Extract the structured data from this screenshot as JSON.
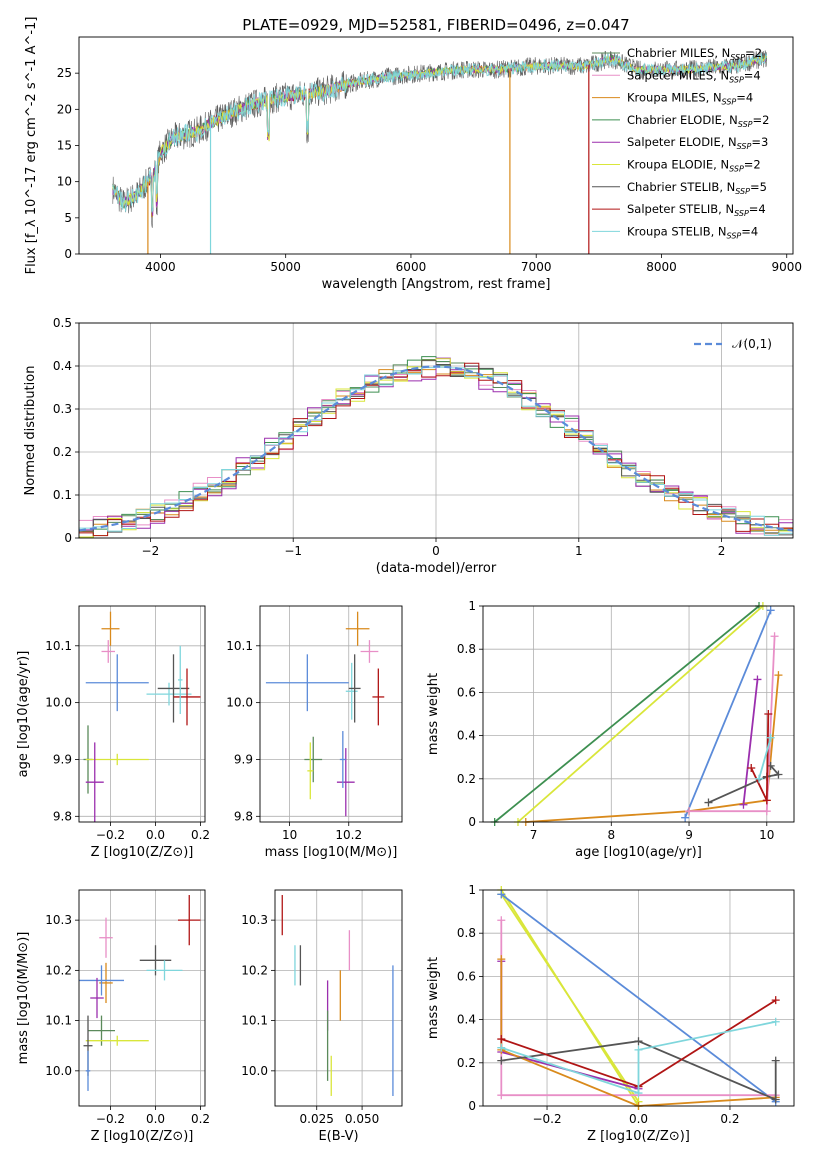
{
  "figure_title": "PLATE=0929, MJD=52581, FIBERID=0496, z=0.047",
  "colors": {
    "Chabrier MILES": "#5b8a5b",
    "Salpeter MILES": "#e88fc7",
    "Kroupa MILES": "#d98a1c",
    "Chabrier ELODIE": "#3d8f50",
    "Salpeter ELODIE": "#9b2fae",
    "Kroupa ELODIE": "#d9e63a",
    "Chabrier STELIB": "#555555",
    "Salpeter STELIB": "#b01515",
    "Kroupa STELIB": "#7fd6dc"
  },
  "chart_data": [
    {
      "id": "spectrum",
      "type": "line",
      "title": "PLATE=0929, MJD=52581, FIBERID=0496, z=0.047",
      "xlabel": "wavelength [Angstrom, rest frame]",
      "ylabel": "Flux [f_λ 10^-17 erg cm^-2 s^-1 A^-1]",
      "xlim": [
        3350,
        9050
      ],
      "ylim": [
        0,
        30
      ],
      "xticks": [
        4000,
        5000,
        6000,
        7000,
        8000,
        9000
      ],
      "yticks": [
        0,
        5,
        10,
        15,
        20,
        25
      ],
      "legend": "upper-right",
      "legend_entries": [
        {
          "label": "Chabrier MILES, N",
          "nssp": "=2",
          "color_key": "Chabrier MILES"
        },
        {
          "label": "Salpeter MILES, N",
          "nssp": "=4",
          "color_key": "Salpeter MILES"
        },
        {
          "label": "Kroupa MILES, N",
          "nssp": "=4",
          "color_key": "Kroupa MILES"
        },
        {
          "label": "Chabrier ELODIE, N",
          "nssp": "=2",
          "color_key": "Chabrier ELODIE"
        },
        {
          "label": "Salpeter ELODIE, N",
          "nssp": "=3",
          "color_key": "Salpeter ELODIE"
        },
        {
          "label": "Kroupa ELODIE, N",
          "nssp": "=2",
          "color_key": "Kroupa ELODIE"
        },
        {
          "label": "Chabrier STELIB, N",
          "nssp": "=5",
          "color_key": "Chabrier STELIB"
        },
        {
          "label": "Salpeter STELIB, N",
          "nssp": "=4",
          "color_key": "Salpeter STELIB"
        },
        {
          "label": "Kroupa STELIB, N",
          "nssp": "=4",
          "color_key": "Kroupa STELIB"
        }
      ],
      "continuum": [
        [
          3620,
          9
        ],
        [
          3700,
          7
        ],
        [
          3800,
          8
        ],
        [
          3900,
          10
        ],
        [
          3950,
          11
        ],
        [
          4000,
          14
        ],
        [
          4100,
          16
        ],
        [
          4300,
          17
        ],
        [
          4500,
          19
        ],
        [
          4700,
          20.5
        ],
        [
          4900,
          21.5
        ],
        [
          5100,
          22
        ],
        [
          5300,
          22.5
        ],
        [
          5500,
          23.5
        ],
        [
          5800,
          24.5
        ],
        [
          6100,
          25
        ],
        [
          6400,
          25.5
        ],
        [
          6700,
          25.5
        ],
        [
          7000,
          26
        ],
        [
          7400,
          26
        ],
        [
          7600,
          27
        ],
        [
          7800,
          25.5
        ],
        [
          8200,
          25.5
        ],
        [
          8600,
          26
        ],
        [
          8800,
          27
        ]
      ],
      "data_end": {
        "default": 8840,
        "Salpeter STELIB": 7420
      },
      "dropouts": [
        {
          "wavelength": 3900,
          "color_key": "Kroupa MILES"
        },
        {
          "wavelength": 4400,
          "color_key": "Kroupa STELIB"
        },
        {
          "wavelength": 6790,
          "color_key": "Kroupa MILES"
        },
        {
          "wavelength": 7420,
          "color_key": "Salpeter STELIB"
        }
      ]
    },
    {
      "id": "residual_histogram",
      "type": "histogram",
      "xlabel": "(data-model)/error",
      "ylabel": "Normed distribution",
      "xlim": [
        -2.5,
        2.5
      ],
      "ylim": [
        0,
        0.5
      ],
      "xticks": [
        -2,
        -1,
        0,
        1,
        2
      ],
      "xtick_labels": [
        "−2",
        "−1",
        "0",
        "1",
        "2"
      ],
      "yticks": [
        0,
        0.1,
        0.2,
        0.3,
        0.4,
        0.5
      ],
      "bin_width": 0.1,
      "reference_curve": {
        "label": "𝒩(0,1)",
        "mean": 0,
        "sigma": 1,
        "style": "dashed",
        "color": "#5b8bd9"
      },
      "legend": "upper-right",
      "series_color_keys": [
        "Chabrier MILES",
        "Salpeter MILES",
        "Kroupa MILES",
        "Chabrier ELODIE",
        "Salpeter ELODIE",
        "Kroupa ELODIE",
        "Chabrier STELIB",
        "Salpeter STELIB",
        "Kroupa STELIB"
      ],
      "series_jitter": [
        0.02,
        0.025,
        0.02,
        0.025,
        0.03,
        0.025,
        0.02,
        0.025,
        0.02
      ]
    },
    {
      "id": "age_vs_Z",
      "type": "errorbar",
      "xlabel": "Z [log10(Z/Z⊙)]",
      "ylabel": "age [log10(age/yr)]",
      "xlim": [
        -0.34,
        0.22
      ],
      "ylim": [
        9.79,
        10.17
      ],
      "xticks": [
        -0.2,
        0.0,
        0.2
      ],
      "xtick_labels": [
        "−0.2",
        "0.0",
        "0.2"
      ],
      "yticks": [
        9.8,
        9.9,
        10.0,
        10.1
      ],
      "points": [
        {
          "x": -0.2,
          "y": 10.13,
          "xerr": 0.04,
          "yerr": 0.03,
          "color_key": "Kroupa MILES"
        },
        {
          "x": -0.21,
          "y": 10.09,
          "xerr": 0.03,
          "yerr": 0.02,
          "color_key": "Salpeter MILES"
        },
        {
          "x": -0.17,
          "y": 10.035,
          "xerr": 0.14,
          "yerr": 0.05,
          "color_key": "Kroupa STELIB_blue"
        },
        {
          "x": 0.06,
          "y": 10.015,
          "xerr": 0.1,
          "yerr": 0.02,
          "color_key": "Kroupa STELIB"
        },
        {
          "x": 0.08,
          "y": 10.025,
          "xerr": 0.07,
          "yerr": 0.06,
          "color_key": "Chabrier STELIB"
        },
        {
          "x": 0.14,
          "y": 10.01,
          "xerr": 0.06,
          "yerr": 0.05,
          "color_key": "Salpeter STELIB"
        },
        {
          "x": 0.11,
          "y": 10.04,
          "xerr": 0.01,
          "yerr": 0.06,
          "color_key": "Kroupa STELIB"
        },
        {
          "x": -0.3,
          "y": 9.9,
          "xerr": 0.02,
          "yerr": 0.06,
          "color_key": "Chabrier MILES"
        },
        {
          "x": -0.17,
          "y": 9.9,
          "xerr": 0.14,
          "yerr": 0.01,
          "color_key": "Kroupa ELODIE"
        },
        {
          "x": -0.27,
          "y": 9.86,
          "xerr": 0.04,
          "yerr": 0.07,
          "color_key": "Salpeter ELODIE"
        }
      ]
    },
    {
      "id": "age_vs_mass",
      "type": "errorbar",
      "xlabel": "mass [log10(M/M⊙)]",
      "xlim": [
        9.9,
        10.38
      ],
      "ylim": [
        9.79,
        10.17
      ],
      "xticks": [
        10.0,
        10.2
      ],
      "yticks": [
        9.8,
        9.9,
        10.0,
        10.1
      ],
      "points": [
        {
          "x": 10.23,
          "y": 10.13,
          "xerr": 0.04,
          "yerr": 0.03,
          "color_key": "Kroupa MILES"
        },
        {
          "x": 10.27,
          "y": 10.09,
          "xerr": 0.03,
          "yerr": 0.02,
          "color_key": "Salpeter MILES"
        },
        {
          "x": 10.06,
          "y": 10.035,
          "xerr": 0.14,
          "yerr": 0.05,
          "color_key": "Kroupa STELIB_blue"
        },
        {
          "x": 10.21,
          "y": 10.02,
          "xerr": 0.02,
          "yerr": 0.05,
          "color_key": "Kroupa STELIB"
        },
        {
          "x": 10.22,
          "y": 10.025,
          "xerr": 0.02,
          "yerr": 0.06,
          "color_key": "Chabrier STELIB"
        },
        {
          "x": 10.3,
          "y": 10.01,
          "xerr": 0.02,
          "yerr": 0.05,
          "color_key": "Salpeter STELIB"
        },
        {
          "x": 10.08,
          "y": 9.9,
          "xerr": 0.03,
          "yerr": 0.04,
          "color_key": "Chabrier MILES"
        },
        {
          "x": 10.07,
          "y": 9.88,
          "xerr": 0.01,
          "yerr": 0.05,
          "color_key": "Kroupa ELODIE"
        },
        {
          "x": 10.19,
          "y": 9.86,
          "xerr": 0.03,
          "yerr": 0.06,
          "color_key": "Salpeter ELODIE"
        },
        {
          "x": 10.18,
          "y": 9.9,
          "xerr": 0.01,
          "yerr": 0.05,
          "color_key": "Kroupa STELIB_blue"
        }
      ]
    },
    {
      "id": "weight_vs_age",
      "type": "line",
      "xlabel": "age [log10(age/yr)]",
      "ylabel": "mass weight",
      "xlim": [
        6.35,
        10.35
      ],
      "ylim": [
        0,
        1
      ],
      "xticks": [
        7,
        8,
        9,
        10
      ],
      "yticks": [
        0,
        0.2,
        0.4,
        0.6,
        0.8,
        1.0
      ],
      "series": [
        {
          "color_key": "Chabrier ELODIE",
          "points": [
            [
              6.5,
              0
            ],
            [
              9.9,
              1.0
            ]
          ]
        },
        {
          "color_key": "Kroupa ELODIE",
          "points": [
            [
              6.8,
              0
            ],
            [
              9.95,
              1.0
            ]
          ]
        },
        {
          "color_key": "Kroupa STELIB_blue",
          "points": [
            [
              8.95,
              0.02
            ],
            [
              10.05,
              0.98
            ]
          ]
        },
        {
          "color_key": "Kroupa MILES",
          "points": [
            [
              6.9,
              0
            ],
            [
              9.0,
              0.05
            ],
            [
              10.0,
              0.1
            ],
            [
              10.15,
              0.68
            ]
          ]
        },
        {
          "color_key": "Salpeter MILES",
          "points": [
            [
              9.0,
              0.05
            ],
            [
              10.0,
              0.05
            ],
            [
              10.1,
              0.86
            ]
          ]
        },
        {
          "color_key": "Salpeter ELODIE",
          "points": [
            [
              9.7,
              0.08
            ],
            [
              9.88,
              0.66
            ]
          ]
        },
        {
          "color_key": "Chabrier STELIB",
          "points": [
            [
              9.25,
              0.09
            ],
            [
              10.0,
              0.21
            ],
            [
              10.15,
              0.22
            ],
            [
              10.05,
              0.26
            ]
          ]
        },
        {
          "color_key": "Salpeter STELIB",
          "points": [
            [
              9.8,
              0.25
            ],
            [
              10.0,
              0.1
            ],
            [
              10.02,
              0.5
            ]
          ]
        },
        {
          "color_key": "Kroupa STELIB",
          "points": [
            [
              9.9,
              0.2
            ],
            [
              10.05,
              0.39
            ]
          ]
        }
      ]
    },
    {
      "id": "mass_vs_Z",
      "type": "errorbar",
      "xlabel": "Z [log10(Z/Z⊙)]",
      "ylabel": "mass [log10(M/M⊙)]",
      "xlim": [
        -0.34,
        0.22
      ],
      "ylim": [
        9.93,
        10.36
      ],
      "xticks": [
        -0.2,
        0.0,
        0.2
      ],
      "xtick_labels": [
        "−0.2",
        "0.0",
        "0.2"
      ],
      "yticks": [
        10.0,
        10.1,
        10.2,
        10.3
      ],
      "points": [
        {
          "x": 0.15,
          "y": 10.3,
          "xerr": 0.05,
          "yerr": 0.05,
          "color_key": "Salpeter STELIB"
        },
        {
          "x": -0.22,
          "y": 10.265,
          "xerr": 0.03,
          "yerr": 0.04,
          "color_key": "Salpeter MILES"
        },
        {
          "x": 0.0,
          "y": 10.22,
          "xerr": 0.07,
          "yerr": 0.03,
          "color_key": "Chabrier STELIB"
        },
        {
          "x": 0.04,
          "y": 10.2,
          "xerr": 0.08,
          "yerr": 0.02,
          "color_key": "Kroupa STELIB"
        },
        {
          "x": -0.22,
          "y": 10.175,
          "xerr": 0.03,
          "yerr": 0.04,
          "color_key": "Kroupa MILES"
        },
        {
          "x": -0.24,
          "y": 10.18,
          "xerr": 0.1,
          "yerr": 0.03,
          "color_key": "Kroupa STELIB_blue"
        },
        {
          "x": -0.26,
          "y": 10.145,
          "xerr": 0.03,
          "yerr": 0.04,
          "color_key": "Salpeter ELODIE"
        },
        {
          "x": -0.24,
          "y": 10.08,
          "xerr": 0.06,
          "yerr": 0.03,
          "color_key": "Chabrier MILES"
        },
        {
          "x": -0.17,
          "y": 10.06,
          "xerr": 0.14,
          "yerr": 0.01,
          "color_key": "Kroupa ELODIE"
        },
        {
          "x": -0.3,
          "y": 10.05,
          "xerr": 0.02,
          "yerr": 0.06,
          "color_key": "Chabrier STELIB"
        },
        {
          "x": -0.3,
          "y": 10.0,
          "xerr": 0.01,
          "yerr": 0.04,
          "color_key": "Kroupa STELIB_blue"
        }
      ]
    },
    {
      "id": "mass_vs_ebv",
      "type": "errorbar",
      "xlabel": "E(B-V)",
      "xlim": [
        0.002,
        0.072
      ],
      "ylim": [
        9.93,
        10.36
      ],
      "xticks": [
        0.025,
        0.05
      ],
      "xtick_labels": [
        "0.025",
        "0.050"
      ],
      "yticks": [
        10.0,
        10.1,
        10.2,
        10.3
      ],
      "points": [
        {
          "x": 0.006,
          "y": 10.31,
          "xerr": 0,
          "yerr": 0.04,
          "color_key": "Salpeter STELIB"
        },
        {
          "x": 0.013,
          "y": 10.21,
          "xerr": 0,
          "yerr": 0.04,
          "color_key": "Kroupa STELIB"
        },
        {
          "x": 0.016,
          "y": 10.21,
          "xerr": 0,
          "yerr": 0.04,
          "color_key": "Chabrier STELIB"
        },
        {
          "x": 0.043,
          "y": 10.24,
          "xerr": 0,
          "yerr": 0.04,
          "color_key": "Salpeter MILES"
        },
        {
          "x": 0.038,
          "y": 10.15,
          "xerr": 0,
          "yerr": 0.05,
          "color_key": "Kroupa MILES"
        },
        {
          "x": 0.031,
          "y": 10.13,
          "xerr": 0,
          "yerr": 0.05,
          "color_key": "Salpeter ELODIE"
        },
        {
          "x": 0.031,
          "y": 10.05,
          "xerr": 0,
          "yerr": 0.07,
          "color_key": "Chabrier MILES"
        },
        {
          "x": 0.033,
          "y": 9.99,
          "xerr": 0,
          "yerr": 0.04,
          "color_key": "Kroupa ELODIE"
        },
        {
          "x": 0.067,
          "y": 10.08,
          "xerr": 0,
          "yerr": 0.13,
          "color_key": "Kroupa STELIB_blue"
        }
      ]
    },
    {
      "id": "weight_vs_Z",
      "type": "line",
      "xlabel": "Z [log10(Z/Z⊙)]",
      "ylabel": "mass weight",
      "xlim": [
        -0.34,
        0.34
      ],
      "ylim": [
        0,
        1
      ],
      "xticks": [
        -0.2,
        0.0,
        0.2
      ],
      "xtick_labels": [
        "−0.2",
        "0.0",
        "0.2"
      ],
      "yticks": [
        0,
        0.2,
        0.4,
        0.6,
        0.8,
        1.0
      ],
      "series": [
        {
          "color_key": "Kroupa ELODIE",
          "points": [
            [
              -0.3,
              1.0
            ],
            [
              0.0,
              0.0
            ]
          ]
        },
        {
          "color_key": "Kroupa ELODIE",
          "points": [
            [
              -0.3,
              0.98
            ],
            [
              0.0,
              0.02
            ]
          ]
        },
        {
          "color_key": "Kroupa STELIB_blue",
          "points": [
            [
              -0.3,
              0.98
            ],
            [
              0.3,
              0.02
            ]
          ]
        },
        {
          "color_key": "Salpeter ELODIE",
          "points": [
            [
              -0.3,
              0.67
            ],
            [
              -0.3,
              0.25
            ],
            [
              0.0,
              0.08
            ]
          ]
        },
        {
          "color_key": "Salpeter MILES",
          "points": [
            [
              -0.3,
              0.86
            ],
            [
              -0.3,
              0.05
            ],
            [
              0.3,
              0.05
            ]
          ]
        },
        {
          "color_key": "Kroupa MILES",
          "points": [
            [
              -0.3,
              0.68
            ],
            [
              -0.3,
              0.26
            ],
            [
              0.0,
              0.0
            ],
            [
              0.3,
              0.04
            ]
          ]
        },
        {
          "color_key": "Chabrier STELIB",
          "points": [
            [
              -0.3,
              0.21
            ],
            [
              0.0,
              0.3
            ],
            [
              0.3,
              0.03
            ],
            [
              0.3,
              0.21
            ]
          ]
        },
        {
          "color_key": "Salpeter STELIB",
          "points": [
            [
              -0.3,
              0.31
            ],
            [
              0.0,
              0.09
            ],
            [
              0.3,
              0.49
            ]
          ]
        },
        {
          "color_key": "Kroupa STELIB",
          "points": [
            [
              -0.3,
              0.27
            ],
            [
              0.0,
              0.06
            ],
            [
              0.0,
              0.26
            ],
            [
              0.3,
              0.39
            ]
          ]
        }
      ]
    }
  ]
}
